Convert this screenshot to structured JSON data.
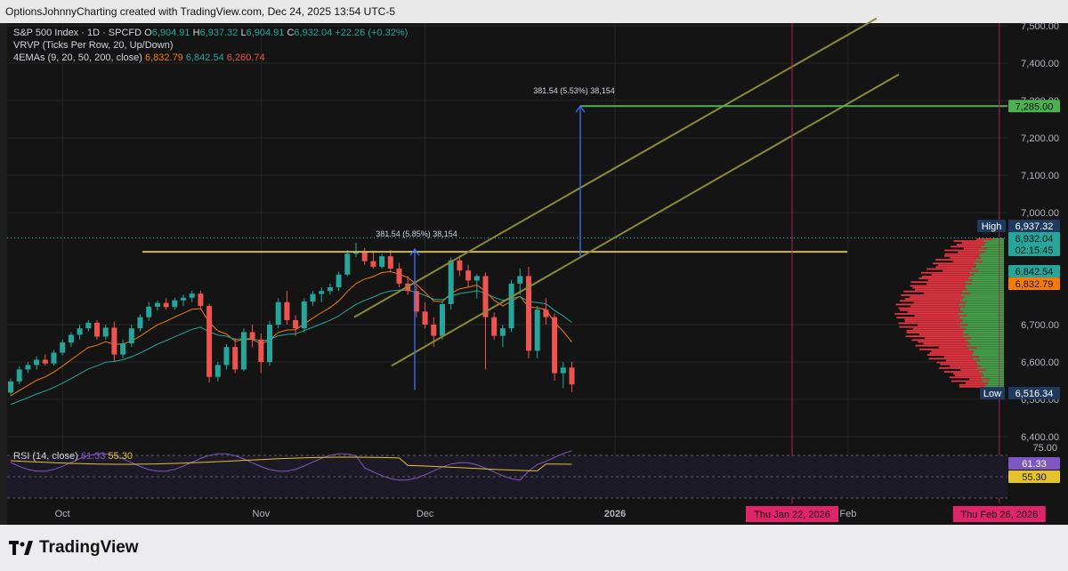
{
  "header": {
    "credit": "OptionsJohnnyCharting created with TradingView.com, Dec 24, 2025 13:54 UTC-5"
  },
  "legend": {
    "symbol": "S&P 500 Index · 1D · SPCFD",
    "ohlc": {
      "o_label": "O",
      "o": "6,904.91",
      "h_label": "H",
      "h": "6,937.32",
      "l_label": "L",
      "l": "6,904.91",
      "c_label": "C",
      "c": "6,932.04",
      "change": "+22.26 (+0.32%)"
    },
    "vrvp": "VRVP (Ticks Per Row, 20, Up/Down)",
    "emas_label": "4EMAs (9, 20, 50, 200, close)",
    "ema_values": [
      "6,832.79",
      "6,842.54",
      "6,260.74"
    ]
  },
  "rsi_legend": {
    "label": "RSI (14, close)",
    "rsi": "61.33",
    "ma": "55.30"
  },
  "branding": {
    "name": "TradingView"
  },
  "colors": {
    "up": "#26a69a",
    "down": "#ef5350",
    "bg": "#141414",
    "grid": "#262626",
    "ema9": "#f57c00",
    "ema20": "#26a69a",
    "level": "#c9b664",
    "target": "#4caf50",
    "channel": "#8a8a3a",
    "measure": "#3d6fff",
    "vline": "#a8245a",
    "rsi": "#7e57c2",
    "rsi_ma": "#e6c229"
  },
  "chart_data": {
    "type": "candlestick",
    "title": "S&P 500 Index · 1D · SPCFD",
    "ylim": [
      6380,
      7520
    ],
    "y_ticks": [
      {
        "v": 7500,
        "label": "7,500.00"
      },
      {
        "v": 7400,
        "label": "7,400.00"
      },
      {
        "v": 7300,
        "label": "7,300.00"
      },
      {
        "v": 7200,
        "label": "7,200.00"
      },
      {
        "v": 7100,
        "label": "7,100.00"
      },
      {
        "v": 7000,
        "label": "7,000.00"
      },
      {
        "v": 6700,
        "label": "6,700.00"
      },
      {
        "v": 6600,
        "label": "6,600.00"
      },
      {
        "v": 6500,
        "label": "6,500.00"
      },
      {
        "v": 6400,
        "label": "6,400.00"
      }
    ],
    "x_labels": [
      {
        "i": 6,
        "label": "Oct"
      },
      {
        "i": 29,
        "label": "Nov"
      },
      {
        "i": 48,
        "label": "Dec"
      },
      {
        "i": 70,
        "label": "2026",
        "bold": true
      },
      {
        "i": 97,
        "label": "Feb"
      }
    ],
    "date_markers": [
      {
        "i": 90,
        "label": "Thu Jan 22, 2026"
      },
      {
        "i": 114,
        "label": "Thu Feb 26, 2026"
      }
    ],
    "candles": [
      [
        6518,
        6556,
        6510,
        6548
      ],
      [
        6548,
        6588,
        6540,
        6580
      ],
      [
        6580,
        6600,
        6570,
        6592
      ],
      [
        6592,
        6615,
        6580,
        6606
      ],
      [
        6606,
        6620,
        6590,
        6596
      ],
      [
        6596,
        6632,
        6590,
        6625
      ],
      [
        6625,
        6660,
        6618,
        6652
      ],
      [
        6652,
        6680,
        6640,
        6673
      ],
      [
        6673,
        6700,
        6660,
        6690
      ],
      [
        6690,
        6712,
        6682,
        6705
      ],
      [
        6705,
        6712,
        6660,
        6668
      ],
      [
        6668,
        6700,
        6660,
        6692
      ],
      [
        6692,
        6708,
        6600,
        6620
      ],
      [
        6620,
        6660,
        6610,
        6650
      ],
      [
        6650,
        6700,
        6640,
        6690
      ],
      [
        6690,
        6728,
        6682,
        6720
      ],
      [
        6720,
        6760,
        6710,
        6748
      ],
      [
        6748,
        6765,
        6738,
        6758
      ],
      [
        6758,
        6770,
        6740,
        6747
      ],
      [
        6747,
        6772,
        6740,
        6765
      ],
      [
        6765,
        6780,
        6750,
        6772
      ],
      [
        6772,
        6790,
        6760,
        6783
      ],
      [
        6783,
        6790,
        6740,
        6750
      ],
      [
        6750,
        6756,
        6545,
        6560
      ],
      [
        6560,
        6600,
        6548,
        6592
      ],
      [
        6592,
        6648,
        6580,
        6640
      ],
      [
        6640,
        6664,
        6570,
        6580
      ],
      [
        6580,
        6690,
        6575,
        6680
      ],
      [
        6680,
        6700,
        6640,
        6660
      ],
      [
        6660,
        6676,
        6570,
        6600
      ],
      [
        6600,
        6710,
        6590,
        6700
      ],
      [
        6700,
        6770,
        6690,
        6760
      ],
      [
        6760,
        6790,
        6700,
        6712
      ],
      [
        6712,
        6725,
        6670,
        6690
      ],
      [
        6690,
        6770,
        6680,
        6762
      ],
      [
        6762,
        6790,
        6750,
        6782
      ],
      [
        6782,
        6800,
        6760,
        6790
      ],
      [
        6790,
        6810,
        6780,
        6800
      ],
      [
        6800,
        6842,
        6790,
        6834
      ],
      [
        6834,
        6900,
        6830,
        6890
      ],
      [
        6890,
        6920,
        6880,
        6895
      ],
      [
        6895,
        6905,
        6860,
        6870
      ],
      [
        6870,
        6898,
        6850,
        6855
      ],
      [
        6855,
        6890,
        6850,
        6883
      ],
      [
        6883,
        6900,
        6840,
        6850
      ],
      [
        6850,
        6865,
        6800,
        6810
      ],
      [
        6810,
        6830,
        6780,
        6790
      ],
      [
        6790,
        6805,
        6720,
        6735
      ],
      [
        6735,
        6760,
        6690,
        6700
      ],
      [
        6700,
        6720,
        6640,
        6670
      ],
      [
        6670,
        6760,
        6660,
        6755
      ],
      [
        6755,
        6880,
        6740,
        6872
      ],
      [
        6872,
        6885,
        6830,
        6845
      ],
      [
        6845,
        6860,
        6800,
        6818
      ],
      [
        6818,
        6835,
        6770,
        6830
      ],
      [
        6830,
        6840,
        6580,
        6720
      ],
      [
        6720,
        6732,
        6660,
        6670
      ],
      [
        6670,
        6700,
        6640,
        6690
      ],
      [
        6690,
        6820,
        6680,
        6810
      ],
      [
        6810,
        6850,
        6780,
        6830
      ],
      [
        6830,
        6855,
        6610,
        6630
      ],
      [
        6630,
        6750,
        6610,
        6740
      ],
      [
        6740,
        6770,
        6700,
        6720
      ],
      [
        6720,
        6730,
        6550,
        6570
      ],
      [
        6570,
        6600,
        6530,
        6585
      ],
      [
        6585,
        6600,
        6520,
        6540
      ]
    ]
  },
  "price_labels": {
    "high_tag": "High",
    "high": "6,937.32",
    "current": "6,932.04",
    "countdown": "02:15:45",
    "ema20": "6,842.54",
    "ema9": "6,832.79",
    "low_tag": "Low",
    "low": "6,516.34",
    "target": "7,285.00",
    "rsi": "61.33",
    "rsi_ma": "55.30",
    "rsi_upper": "75.00"
  },
  "annotations": {
    "measure_1": "381.54 (5.85%) 38,154",
    "measure_2": "381.54 (5.53%) 38,154"
  }
}
